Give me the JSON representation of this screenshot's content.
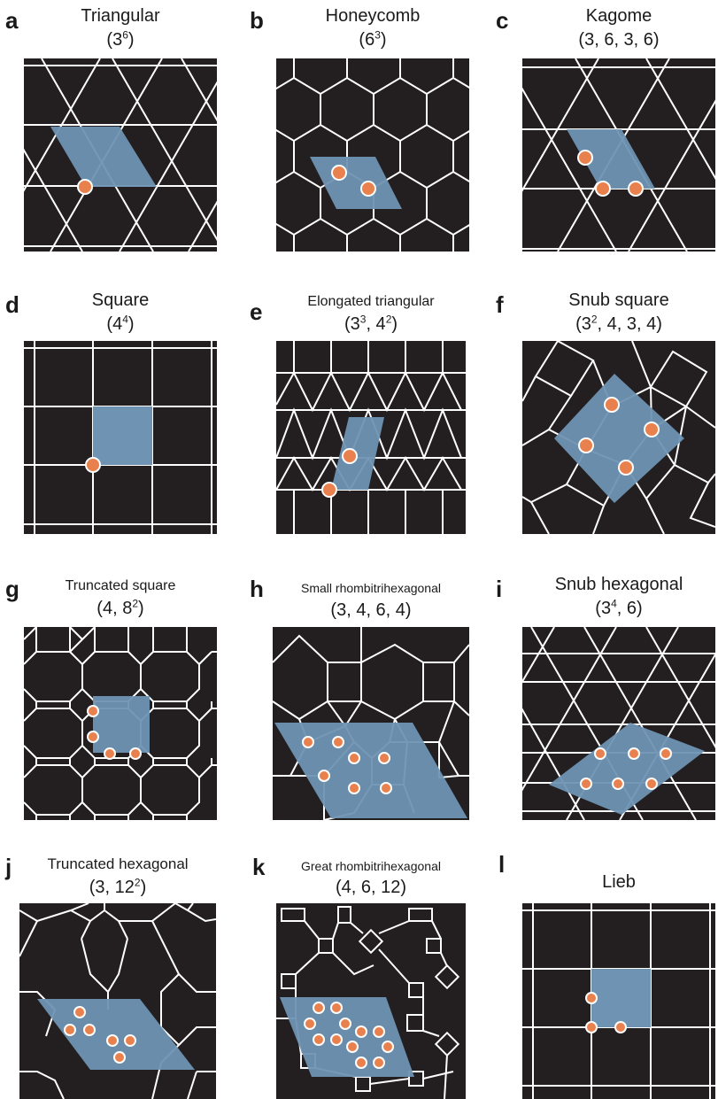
{
  "panels": [
    {
      "letter": "a",
      "title": "Triangular",
      "notation": [
        {
          "t": "(3"
        },
        {
          "sup": "6"
        },
        {
          "t": ")"
        }
      ]
    },
    {
      "letter": "b",
      "title": "Honeycomb",
      "notation": [
        {
          "t": "(6"
        },
        {
          "sup": "3"
        },
        {
          "t": ")"
        }
      ]
    },
    {
      "letter": "c",
      "title": "Kagome",
      "notation": [
        {
          "t": "(3, 6, 3, 6)"
        }
      ]
    },
    {
      "letter": "d",
      "title": "Square",
      "notation": [
        {
          "t": "(4"
        },
        {
          "sup": "4"
        },
        {
          "t": ")"
        }
      ]
    },
    {
      "letter": "e",
      "title": "Elongated triangular",
      "notation": [
        {
          "t": "(3"
        },
        {
          "sup": "3"
        },
        {
          "t": ", 4"
        },
        {
          "sup": "2"
        },
        {
          "t": ")"
        }
      ]
    },
    {
      "letter": "f",
      "title": "Snub square",
      "notation": [
        {
          "t": "(3"
        },
        {
          "sup": "2"
        },
        {
          "t": ", 4, 3, 4)"
        }
      ]
    },
    {
      "letter": "g",
      "title": "Truncated square",
      "notation": [
        {
          "t": "(4, 8"
        },
        {
          "sup": "2"
        },
        {
          "t": ")"
        }
      ]
    },
    {
      "letter": "h",
      "title": "Small rhombitrihexagonal",
      "notation": [
        {
          "t": "(3, 4, 6, 4)"
        }
      ]
    },
    {
      "letter": "i",
      "title": "Snub hexagonal",
      "notation": [
        {
          "t": "(3"
        },
        {
          "sup": "4"
        },
        {
          "t": ", 6)"
        }
      ]
    },
    {
      "letter": "j",
      "title": "Truncated hexagonal",
      "notation": [
        {
          "t": "(3, 12"
        },
        {
          "sup": "2"
        },
        {
          "t": ")"
        }
      ]
    },
    {
      "letter": "k",
      "title": "Great rhombitrihexagonal",
      "notation": [
        {
          "t": "(4, 6, 12)"
        }
      ]
    },
    {
      "letter": "l",
      "title": "Lieb",
      "notation": []
    }
  ],
  "colors": {
    "tile_bg": "#231f20",
    "lines": "#ffffff",
    "unit_cell": "#6f93b3",
    "site": "#e8814d",
    "site_highlight": "#fde3cf"
  }
}
